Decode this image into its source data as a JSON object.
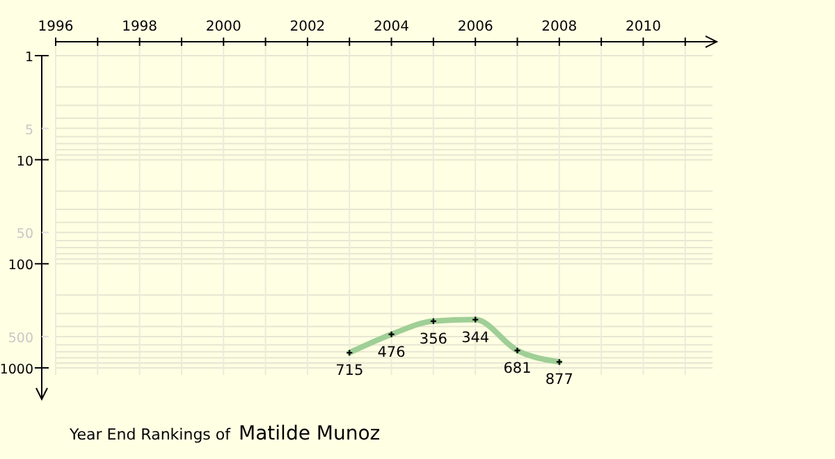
{
  "chart_data": {
    "type": "line",
    "title": "Year End Rankings of",
    "subtitle": "Matilde Munoz",
    "x": [
      2003,
      2004,
      2005,
      2006,
      2007,
      2008
    ],
    "series": [
      {
        "color": "#9fcf96",
        "values": [
          715,
          476,
          356,
          344,
          681,
          877
        ]
      }
    ],
    "xlim": [
      1996,
      2011.75
    ],
    "xticks": [
      1996,
      {
        "value": 1997,
        "label": null
      },
      1998,
      {
        "value": 1999,
        "label": null
      },
      2000,
      {
        "value": 2001,
        "label": null
      },
      2002,
      {
        "value": 2003,
        "label": null
      },
      2004,
      {
        "value": 2005,
        "label": null
      },
      2006,
      {
        "value": 2007,
        "label": null
      },
      2008,
      {
        "value": 2009,
        "label": null
      },
      2010,
      {
        "value": 2011,
        "label": null
      }
    ],
    "ylim": [
      2000,
      1
    ],
    "yticks": [
      1,
      5,
      10,
      50,
      100,
      500,
      1000
    ],
    "log": true,
    "grid": true,
    "marker": "cross",
    "line_style": "solid",
    "data_labels": true
  }
}
